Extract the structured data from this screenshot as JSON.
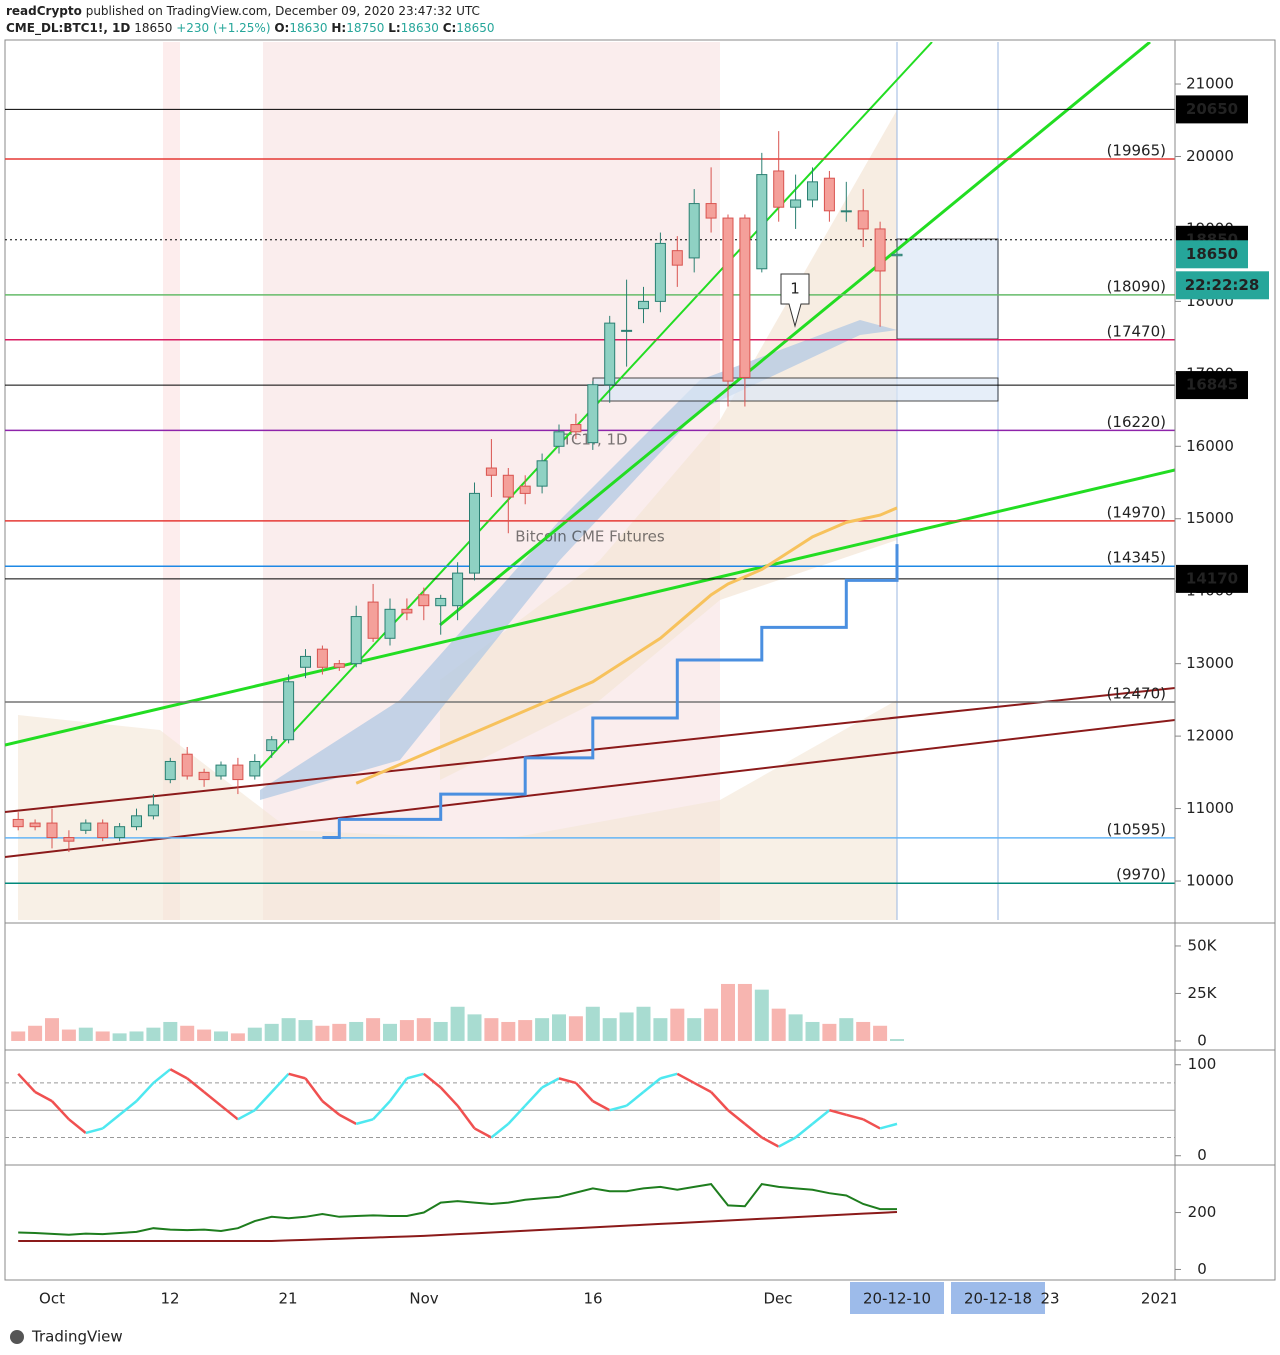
{
  "header": {
    "author": "readCrypto",
    "published": "published on TradingView.com, December 09, 2020 23:47:32 UTC",
    "symbol": "CME_DL:BTC1!, 1D",
    "price": "18650",
    "change": "+230 (+1.25%)",
    "o_label": "O:",
    "o": "18630",
    "h_label": "H:",
    "h": "18750",
    "l_label": "L:",
    "l": "18630",
    "c_label": "C:",
    "c": "18650"
  },
  "footer": "TradingView",
  "chart_data": {
    "type": "candlestick",
    "watermark": [
      "BTC1!, 1D",
      "Bitcoin CME Futures"
    ],
    "marker": "1",
    "countdown": "22:22:28",
    "candles": [
      [
        10850,
        10950,
        10700,
        10750
      ],
      [
        10800,
        10850,
        10700,
        10750
      ],
      [
        10800,
        11000,
        10450,
        10600
      ],
      [
        10600,
        10700,
        10400,
        10550
      ],
      [
        10700,
        10850,
        10650,
        10800
      ],
      [
        10800,
        10850,
        10550,
        10600
      ],
      [
        10600,
        10800,
        10550,
        10750
      ],
      [
        10750,
        11000,
        10700,
        10900
      ],
      [
        10900,
        11200,
        10850,
        11050
      ],
      [
        11400,
        11700,
        11350,
        11650
      ],
      [
        11750,
        11850,
        11400,
        11450
      ],
      [
        11500,
        11550,
        11300,
        11400
      ],
      [
        11450,
        11650,
        11400,
        11600
      ],
      [
        11600,
        11700,
        11200,
        11400
      ],
      [
        11450,
        11750,
        11400,
        11650
      ],
      [
        11800,
        12000,
        11700,
        11950
      ],
      [
        11950,
        12850,
        11900,
        12750
      ],
      [
        12950,
        13200,
        12800,
        13100
      ],
      [
        13200,
        13250,
        12850,
        12950
      ],
      [
        13000,
        13050,
        12900,
        12950
      ],
      [
        13000,
        13800,
        12950,
        13650
      ],
      [
        13850,
        14100,
        13300,
        13350
      ],
      [
        13350,
        13900,
        13250,
        13750
      ],
      [
        13750,
        13900,
        13600,
        13700
      ],
      [
        13950,
        14050,
        13600,
        13800
      ],
      [
        13800,
        13950,
        13400,
        13900
      ],
      [
        13800,
        14400,
        13600,
        14250
      ],
      [
        14250,
        15500,
        14150,
        15350
      ],
      [
        15700,
        16100,
        15300,
        15600
      ],
      [
        15600,
        15700,
        14800,
        15300
      ],
      [
        15450,
        15600,
        15200,
        15350
      ],
      [
        15450,
        15900,
        15350,
        15800
      ],
      [
        16000,
        16300,
        15900,
        16200
      ],
      [
        16300,
        16450,
        16100,
        16200
      ],
      [
        16050,
        16900,
        15950,
        16850
      ],
      [
        16850,
        17800,
        16600,
        17700
      ],
      [
        17600,
        18300,
        17100,
        17600
      ],
      [
        17900,
        18200,
        17700,
        18000
      ],
      [
        18000,
        18950,
        17850,
        18800
      ],
      [
        18700,
        18900,
        18200,
        18500
      ],
      [
        18600,
        19550,
        18400,
        19350
      ],
      [
        19350,
        19850,
        18950,
        19150
      ],
      [
        19150,
        19200,
        16550,
        16900
      ],
      [
        19150,
        19200,
        16550,
        16950
      ],
      [
        18450,
        20050,
        18400,
        19750
      ],
      [
        19800,
        20350,
        19100,
        19300
      ],
      [
        19300,
        19750,
        19000,
        19400
      ],
      [
        19400,
        19850,
        19300,
        19650
      ],
      [
        19700,
        19800,
        19100,
        19250
      ],
      [
        19250,
        19650,
        19100,
        19250
      ],
      [
        19250,
        19550,
        18750,
        19000
      ],
      [
        19000,
        19100,
        17650,
        18420
      ],
      [
        18630,
        18750,
        18630,
        18650
      ]
    ],
    "ylim": [
      9462,
      21580
    ],
    "yticks": [
      10000,
      11000,
      12000,
      13000,
      14000,
      15000,
      16000,
      17000,
      18000,
      19000,
      20000,
      21000
    ],
    "xticks": [
      "Oct",
      "12",
      "21",
      "Nov",
      "16",
      "Dec",
      "20-12-10",
      "20-12-18",
      "23",
      "2021"
    ],
    "levels": [
      {
        "value": 19965,
        "label": "(19965)",
        "color": "#e53935"
      },
      {
        "value": 18090,
        "label": "(18090)",
        "color": "#66bb6a"
      },
      {
        "value": 17470,
        "label": "(17470)",
        "color": "#d81b60"
      },
      {
        "value": 16220,
        "label": "(16220)",
        "color": "#8e24aa"
      },
      {
        "value": 14970,
        "label": "(14970)",
        "color": "#e53935"
      },
      {
        "value": 14345,
        "label": "(14345)",
        "color": "#1e88e5"
      },
      {
        "value": 12470,
        "label": "(12470)",
        "color": "#757575"
      },
      {
        "value": 10595,
        "label": "(10595)",
        "color": "#64b5f6"
      },
      {
        "value": 9970,
        "label": "(9970)",
        "color": "#00897b"
      }
    ],
    "price_labels": [
      {
        "value": 20650,
        "color": "#000000",
        "line": "solid"
      },
      {
        "value": 18850,
        "color": "#000000",
        "line": "dotted"
      },
      {
        "value": 18650,
        "color": "#26a69a",
        "line": "none"
      },
      {
        "value": 16845,
        "color": "#000000",
        "line": "solid"
      },
      {
        "value": 14170,
        "color": "#000000",
        "line": "solid"
      }
    ],
    "overlays": [
      {
        "color": "#f7c25c",
        "step": false,
        "values": [
          null,
          null,
          null,
          null,
          null,
          null,
          null,
          null,
          null,
          null,
          null,
          null,
          null,
          null,
          null,
          null,
          null,
          null,
          null,
          null,
          11350,
          11450,
          11550,
          11650,
          11750,
          11850,
          11950,
          12050,
          12150,
          12250,
          12350,
          12450,
          12550,
          12650,
          12750,
          12900,
          13050,
          13200,
          13350,
          13550,
          13750,
          13950,
          14100,
          14200,
          14300,
          14450,
          14600,
          14750,
          14850,
          14950,
          15000,
          15050,
          15150
        ]
      },
      {
        "color": "#4a8fe0",
        "step": true,
        "values": [
          null,
          null,
          null,
          null,
          null,
          null,
          null,
          null,
          null,
          null,
          null,
          null,
          null,
          null,
          null,
          null,
          null,
          null,
          10600,
          10850,
          10850,
          10850,
          10850,
          10850,
          10850,
          11200,
          11200,
          11200,
          11200,
          11200,
          11700,
          11700,
          11700,
          11700,
          12250,
          12250,
          12250,
          12250,
          12250,
          13050,
          13050,
          13050,
          13050,
          13050,
          13500,
          13500,
          13500,
          13500,
          13500,
          14150,
          14150,
          14150,
          14650
        ]
      }
    ]
  },
  "volume": {
    "ylim": [
      -3700,
      60500
    ],
    "yticks": [
      0,
      {
        "value": 25000,
        "label": "25K"
      },
      {
        "value": 50000,
        "label": "50K"
      }
    ],
    "values": [
      5000,
      8000,
      12000,
      6000,
      7000,
      5000,
      4000,
      5000,
      7000,
      10000,
      8000,
      6000,
      5000,
      4000,
      7000,
      9000,
      12000,
      11000,
      8000,
      9000,
      10000,
      12000,
      9000,
      11000,
      12000,
      10000,
      18000,
      14000,
      12000,
      10000,
      11000,
      12000,
      14000,
      13000,
      18000,
      12000,
      15000,
      18000,
      12000,
      17000,
      12000,
      17000,
      30000,
      30000,
      27000,
      17000,
      14000,
      10000,
      9000,
      12000,
      10000,
      8000,
      1000
    ]
  },
  "oscillator": {
    "ylim": [
      -8,
      114
    ],
    "yticks": [
      0,
      100
    ],
    "bands": [
      20,
      50,
      80
    ],
    "values": [
      90,
      70,
      60,
      40,
      25,
      30,
      45,
      60,
      80,
      95,
      85,
      70,
      55,
      40,
      50,
      70,
      90,
      85,
      60,
      45,
      35,
      40,
      60,
      85,
      90,
      75,
      55,
      30,
      20,
      35,
      55,
      75,
      85,
      80,
      60,
      50,
      55,
      70,
      85,
      90,
      80,
      70,
      50,
      35,
      20,
      10,
      20,
      35,
      50,
      45,
      40,
      30,
      35
    ]
  },
  "strength": {
    "ylim": [
      -30,
      360
    ],
    "yticks": [
      0,
      200
    ],
    "series": [
      {
        "color": "#1e7d1e",
        "values": [
          130,
          128,
          125,
          122,
          126,
          124,
          128,
          132,
          145,
          140,
          138,
          140,
          135,
          145,
          170,
          185,
          180,
          185,
          195,
          185,
          188,
          190,
          188,
          188,
          200,
          235,
          240,
          235,
          230,
          235,
          245,
          250,
          255,
          270,
          285,
          275,
          275,
          285,
          290,
          280,
          290,
          300,
          225,
          222,
          300,
          290,
          285,
          280,
          268,
          260,
          230,
          212,
          212
        ]
      },
      {
        "color": "#8b1a1a",
        "values": [
          100,
          100,
          100,
          100,
          100,
          100,
          100,
          100,
          100,
          100,
          100,
          100,
          100,
          100,
          100,
          100,
          102,
          104,
          106,
          108,
          110,
          112,
          114,
          116,
          118,
          121,
          124,
          127,
          130,
          133,
          136,
          139,
          142,
          145,
          148,
          151,
          154,
          157,
          160,
          163,
          166,
          169,
          172,
          175,
          178,
          181,
          184,
          187,
          190,
          193,
          196,
          199,
          202
        ]
      }
    ]
  }
}
